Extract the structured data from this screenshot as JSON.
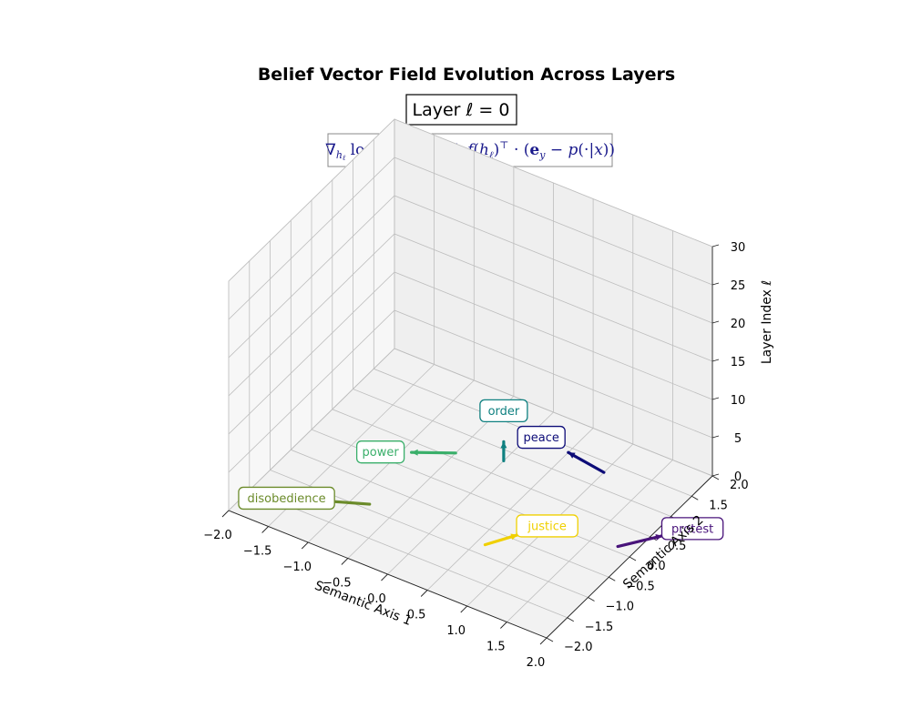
{
  "chart_data": {
    "type": "3d-vector-field",
    "title": "Belief Vector Field Evolution Across Layers",
    "layer_label": "Layer ℓ = 0",
    "equation": "∇_{h_ℓ} log p(y|x) = ∇_{h_ℓ} f(h_ℓ)^⊤ · (e_y − p(·|x))",
    "xlabel": "Semantic Axis 1",
    "ylabel": "Semantic Axis 2",
    "zlabel": "Layer Index ℓ",
    "xlim": [
      -2,
      2
    ],
    "ylim": [
      -2,
      2
    ],
    "zlim": [
      0,
      30
    ],
    "xticks": [
      "−2.0",
      "−1.5",
      "−1.0",
      "−0.5",
      "0.0",
      "0.5",
      "1.0",
      "1.5",
      "2.0"
    ],
    "yticks": [
      "−2.0",
      "−1.5",
      "−1.0",
      "−0.5",
      "0.0",
      "0.5",
      "1.0",
      "1.5",
      "2.0"
    ],
    "zticks": [
      "0",
      "5",
      "10",
      "15",
      "20",
      "25",
      "30"
    ],
    "grid": true,
    "series": [
      {
        "name": "peace",
        "color": "#0d0c78",
        "start": [
          1.0,
          1.3,
          0
        ],
        "end": [
          0.5,
          1.4,
          0
        ]
      },
      {
        "name": "order",
        "color": "#0f8080",
        "start": [
          0.0,
          0.8,
          0
        ],
        "end": [
          0.0,
          0.8,
          2.5
        ]
      },
      {
        "name": "power",
        "color": "#3aaf6a",
        "start": [
          -0.5,
          0.6,
          0
        ],
        "end": [
          -0.9,
          0.3,
          0
        ]
      },
      {
        "name": "protest",
        "color": "#48137a",
        "start": [
          1.8,
          0.1,
          0
        ],
        "end": [
          2.1,
          0.6,
          0
        ]
      },
      {
        "name": "justice",
        "color": "#f0d000",
        "start": [
          0.6,
          -0.8,
          0
        ],
        "end": [
          0.8,
          -0.4,
          0
        ]
      },
      {
        "name": "disobedience",
        "color": "#6b8b2a",
        "start": [
          -0.8,
          -0.9,
          0
        ],
        "end": [
          -1.3,
          -1.2,
          0
        ]
      }
    ]
  }
}
